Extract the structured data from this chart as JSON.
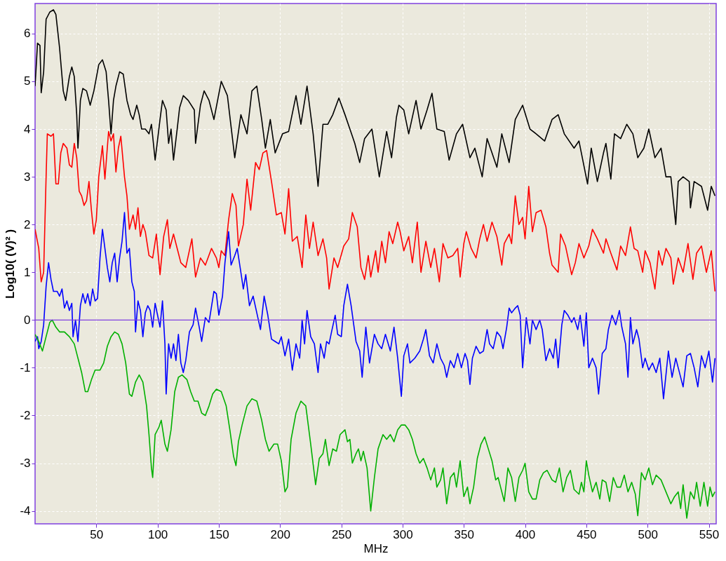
{
  "chart_data": {
    "type": "line",
    "xlabel": "MHz",
    "ylabel": "Log10( (V)² )",
    "xlim": [
      0,
      556
    ],
    "ylim": [
      -4.27,
      6.63
    ],
    "xticks": [
      50,
      100,
      150,
      200,
      250,
      300,
      350,
      400,
      450,
      500,
      550
    ],
    "yticks": [
      -4,
      -3,
      -2,
      -1,
      0,
      1,
      2,
      3,
      4,
      5,
      6
    ],
    "grid": true,
    "line_style": "solid",
    "marker": "none",
    "ref_lines": [
      {
        "axis": "y",
        "value": 0,
        "color": "#8040e0"
      }
    ],
    "series": [
      {
        "color": "#000000",
        "x": [
          0,
          2,
          4,
          5,
          7,
          9,
          12,
          15,
          17,
          20,
          23,
          25,
          28,
          30,
          32,
          34,
          35,
          37,
          39,
          42,
          45,
          48,
          52,
          55,
          58,
          60,
          62,
          64,
          66,
          69,
          72,
          75,
          78,
          80,
          83,
          85,
          87,
          90,
          93,
          95,
          98,
          102,
          104,
          107,
          109,
          111,
          113,
          116,
          118,
          121,
          125,
          130,
          131,
          135,
          138,
          142,
          146,
          152,
          157,
          163,
          168,
          173,
          177,
          181,
          185,
          188,
          192,
          196,
          202,
          207,
          213,
          217,
          222,
          227,
          231,
          235,
          239,
          243,
          248,
          253,
          257,
          261,
          265,
          269,
          275,
          281,
          287,
          291,
          295,
          297,
          301,
          305,
          311,
          315,
          320,
          324,
          328,
          334,
          338,
          344,
          349,
          355,
          359,
          365,
          369,
          373,
          377,
          381,
          387,
          392,
          398,
          404,
          409,
          416,
          422,
          427,
          432,
          440,
          444,
          451,
          454,
          459,
          464,
          466,
          470,
          473,
          478,
          483,
          488,
          492,
          497,
          501,
          506,
          511,
          515,
          519,
          523,
          525,
          529,
          534,
          535,
          538,
          544,
          549,
          552,
          555
        ],
        "values": [
          4.9,
          5.8,
          5.75,
          4.76,
          5.2,
          6.3,
          6.45,
          6.5,
          6.4,
          5.7,
          4.8,
          4.6,
          5.1,
          5.3,
          5.1,
          4.3,
          3.6,
          4.6,
          4.85,
          4.8,
          4.5,
          4.8,
          5.35,
          5.45,
          5.2,
          4.6,
          3.9,
          4.6,
          4.9,
          5.2,
          5.15,
          4.6,
          4.3,
          4.2,
          4.5,
          4.3,
          4.0,
          4.0,
          3.9,
          4.1,
          3.35,
          4.2,
          4.6,
          4.4,
          3.7,
          4.0,
          3.35,
          4.0,
          4.45,
          4.7,
          4.6,
          4.4,
          3.7,
          4.5,
          4.8,
          4.6,
          4.2,
          5.0,
          4.7,
          3.4,
          4.3,
          3.9,
          4.8,
          4.9,
          4.2,
          3.6,
          4.2,
          3.5,
          3.9,
          3.95,
          4.7,
          4.1,
          4.9,
          3.9,
          2.8,
          4.1,
          4.1,
          4.3,
          4.65,
          4.3,
          4.0,
          3.7,
          3.3,
          3.8,
          4.0,
          3.0,
          3.95,
          3.4,
          4.25,
          4.5,
          4.4,
          3.9,
          4.6,
          4.0,
          4.4,
          4.75,
          4.0,
          3.95,
          3.35,
          3.9,
          4.1,
          3.4,
          3.6,
          3.0,
          3.8,
          3.5,
          3.2,
          3.9,
          3.3,
          4.2,
          4.5,
          4.0,
          3.9,
          3.75,
          4.2,
          4.3,
          3.9,
          3.6,
          3.75,
          2.85,
          3.6,
          2.9,
          3.5,
          3.7,
          2.95,
          3.9,
          3.8,
          4.1,
          3.9,
          3.4,
          3.6,
          4.0,
          3.4,
          3.6,
          3.0,
          3.0,
          2.0,
          2.9,
          3.0,
          2.9,
          2.35,
          2.9,
          2.8,
          2.3,
          2.8,
          2.6
        ]
      },
      {
        "color": "#ff0000",
        "x": [
          0,
          3,
          5,
          7,
          9,
          10,
          13,
          15,
          17,
          19,
          21,
          23,
          26,
          28,
          30,
          32,
          34,
          36,
          38,
          40,
          42,
          44,
          46,
          48,
          50,
          52,
          55,
          57,
          60,
          62,
          64,
          66,
          68,
          70,
          73,
          75,
          77,
          80,
          82,
          84,
          86,
          88,
          90,
          93,
          96,
          99,
          102,
          105,
          108,
          110,
          113,
          116,
          119,
          123,
          128,
          131,
          135,
          139,
          144,
          148,
          150,
          152,
          155,
          158,
          161,
          164,
          166,
          170,
          173,
          176,
          180,
          183,
          186,
          189,
          193,
          197,
          201,
          204,
          207,
          210,
          214,
          218,
          221,
          224,
          227,
          231,
          235,
          238,
          240,
          244,
          247,
          252,
          256,
          259,
          263,
          266,
          269,
          272,
          274,
          278,
          280,
          283,
          286,
          289,
          292,
          296,
          298,
          301,
          305,
          308,
          312,
          315,
          319,
          323,
          326,
          330,
          333,
          337,
          341,
          345,
          347,
          350,
          352,
          356,
          360,
          363,
          366,
          369,
          373,
          377,
          381,
          383,
          387,
          389,
          392,
          395,
          398,
          400,
          403,
          406,
          409,
          413,
          417,
          420,
          422,
          427,
          429,
          433,
          438,
          441,
          444,
          448,
          452,
          455,
          459,
          464,
          466,
          470,
          475,
          478,
          482,
          486,
          489,
          492,
          496,
          498,
          502,
          506,
          509,
          512,
          515,
          519,
          521,
          525,
          529,
          533,
          537,
          540,
          544,
          548,
          552,
          555
        ],
        "values": [
          1.9,
          1.5,
          0.8,
          1.0,
          3.0,
          3.9,
          3.85,
          3.9,
          2.85,
          2.85,
          3.5,
          3.7,
          3.6,
          3.25,
          3.2,
          3.7,
          3.4,
          2.7,
          2.6,
          2.4,
          2.5,
          2.9,
          2.3,
          1.8,
          2.1,
          3.0,
          3.65,
          2.95,
          3.95,
          3.75,
          3.9,
          3.1,
          3.6,
          3.85,
          3.0,
          2.6,
          1.9,
          2.2,
          1.9,
          2.35,
          1.75,
          2.0,
          1.85,
          1.35,
          1.3,
          1.8,
          0.95,
          1.75,
          2.1,
          1.5,
          1.8,
          1.5,
          1.2,
          1.1,
          1.7,
          0.9,
          1.3,
          1.15,
          1.5,
          1.3,
          1.1,
          1.45,
          1.35,
          2.1,
          2.65,
          2.4,
          1.55,
          2.0,
          2.95,
          2.3,
          3.3,
          3.15,
          3.5,
          3.55,
          2.9,
          2.2,
          2.25,
          1.8,
          2.75,
          1.65,
          1.75,
          1.1,
          2.2,
          1.5,
          2.05,
          1.35,
          1.7,
          1.3,
          0.65,
          1.3,
          1.1,
          1.55,
          1.7,
          2.25,
          1.95,
          1.1,
          0.85,
          1.35,
          0.9,
          1.45,
          1.0,
          1.65,
          1.2,
          1.85,
          1.6,
          2.05,
          1.85,
          1.45,
          1.75,
          1.2,
          2.05,
          1.0,
          1.65,
          1.1,
          1.5,
          0.8,
          1.6,
          1.3,
          1.35,
          1.5,
          0.9,
          1.6,
          1.85,
          1.5,
          1.3,
          1.7,
          2.0,
          1.65,
          2.05,
          1.75,
          1.15,
          1.6,
          1.8,
          1.6,
          2.6,
          2.0,
          2.15,
          1.7,
          2.8,
          1.85,
          2.25,
          2.3,
          1.95,
          1.4,
          1.15,
          1.0,
          1.8,
          1.55,
          0.95,
          1.2,
          1.6,
          1.3,
          1.55,
          1.9,
          1.7,
          1.4,
          1.7,
          1.4,
          1.05,
          1.55,
          1.35,
          1.95,
          1.5,
          1.45,
          1.0,
          1.45,
          1.2,
          0.65,
          1.45,
          1.15,
          1.5,
          1.3,
          0.75,
          1.3,
          1.0,
          1.6,
          0.85,
          1.4,
          1.55,
          1.0,
          1.45,
          0.6
        ]
      },
      {
        "color": "#0000ff",
        "x": [
          0,
          2,
          3,
          5,
          7,
          9,
          11,
          13,
          15,
          18,
          20,
          22,
          24,
          26,
          28,
          30,
          31,
          33,
          35,
          37,
          39,
          41,
          43,
          45,
          47,
          49,
          51,
          53,
          55,
          57,
          59,
          61,
          63,
          65,
          67,
          69,
          71,
          73,
          75,
          77,
          79,
          81,
          82,
          84,
          86,
          88,
          90,
          92,
          94,
          96,
          98,
          100,
          102,
          104,
          106,
          107,
          109,
          111,
          113,
          115,
          117,
          119,
          121,
          123,
          126,
          129,
          131,
          134,
          136,
          139,
          142,
          146,
          148,
          150,
          153,
          155,
          158,
          160,
          163,
          165,
          168,
          170,
          172,
          175,
          178,
          181,
          184,
          187,
          190,
          193,
          196,
          199,
          201,
          204,
          207,
          210,
          213,
          216,
          218,
          220,
          222,
          225,
          228,
          231,
          233,
          236,
          238,
          240,
          242,
          245,
          247,
          250,
          252,
          255,
          258,
          262,
          265,
          267,
          270,
          273,
          277,
          280,
          283,
          286,
          290,
          293,
          296,
          299,
          301,
          304,
          306,
          310,
          314,
          317,
          319,
          322,
          325,
          328,
          331,
          334,
          336,
          339,
          342,
          345,
          348,
          351,
          353,
          355,
          357,
          360,
          363,
          366,
          369,
          371,
          374,
          377,
          380,
          382,
          385,
          387,
          389,
          392,
          394,
          396,
          398,
          401,
          404,
          406,
          409,
          412,
          414,
          417,
          420,
          423,
          425,
          427,
          430,
          432,
          435,
          438,
          440,
          443,
          445,
          448,
          450,
          452,
          455,
          458,
          460,
          463,
          466,
          468,
          471,
          474,
          477,
          479,
          482,
          484,
          486,
          488,
          491,
          493,
          496,
          498,
          501,
          504,
          507,
          510,
          513,
          517,
          520,
          523,
          525,
          529,
          532,
          535,
          538,
          541,
          544,
          547,
          550,
          553,
          555
        ],
        "values": [
          -0.45,
          -0.35,
          -0.6,
          -0.45,
          -0.1,
          0.7,
          1.2,
          0.85,
          0.6,
          0.6,
          0.5,
          0.65,
          0.25,
          0.4,
          0.2,
          0.35,
          -0.35,
          0.0,
          -0.45,
          0.3,
          0.55,
          0.35,
          0.55,
          0.3,
          0.65,
          0.4,
          0.45,
          1.3,
          1.9,
          1.5,
          1.1,
          0.8,
          1.2,
          1.4,
          0.8,
          1.3,
          1.65,
          2.25,
          1.4,
          1.5,
          0.8,
          0.6,
          -0.25,
          0.4,
          0.2,
          -0.35,
          0.15,
          0.3,
          0.2,
          -0.15,
          0.35,
          0.1,
          -0.15,
          0.4,
          -0.5,
          -1.55,
          -0.5,
          -0.8,
          -0.5,
          -0.85,
          -0.3,
          -0.9,
          -1.1,
          -0.85,
          -0.25,
          -0.1,
          0.25,
          -0.15,
          -0.45,
          0.05,
          -0.05,
          0.6,
          0.55,
          0.1,
          0.5,
          1.2,
          1.85,
          1.15,
          1.35,
          1.5,
          1.0,
          0.65,
          0.95,
          0.3,
          0.5,
          0.15,
          -0.2,
          0.5,
          0.1,
          -0.4,
          -0.45,
          -0.5,
          -0.35,
          -0.75,
          -0.4,
          -1.05,
          -0.5,
          -0.8,
          0.0,
          -0.5,
          0.2,
          -0.35,
          -0.5,
          -1.1,
          -0.5,
          -0.8,
          -0.45,
          -0.5,
          -0.25,
          0.1,
          -0.3,
          -0.35,
          0.3,
          0.75,
          0.3,
          -0.45,
          -0.65,
          -1.2,
          -0.15,
          -0.9,
          -0.3,
          -0.5,
          -0.6,
          -0.3,
          -0.65,
          -0.15,
          -0.8,
          -1.6,
          -0.75,
          -0.5,
          -0.9,
          -0.8,
          -0.65,
          -0.4,
          -0.2,
          -0.75,
          -0.9,
          -0.5,
          -0.8,
          -0.95,
          -1.2,
          -0.85,
          -1.0,
          -0.7,
          -1.0,
          -0.7,
          -0.85,
          -1.35,
          -0.8,
          -0.55,
          -0.7,
          -0.65,
          -0.2,
          -0.5,
          -0.6,
          -0.25,
          -0.35,
          -0.6,
          -0.15,
          0.25,
          0.15,
          0.25,
          0.3,
          0.1,
          -1.0,
          0.05,
          -0.5,
          0.0,
          -0.2,
          0.0,
          -0.2,
          -0.85,
          -0.6,
          -0.8,
          -0.4,
          -1.0,
          -0.1,
          0.2,
          0.1,
          -0.05,
          0.05,
          -0.2,
          0.1,
          -0.55,
          0.15,
          -1.0,
          -0.8,
          -1.0,
          -1.55,
          -0.7,
          -0.6,
          -0.2,
          0.1,
          -0.1,
          0.2,
          -0.15,
          -0.5,
          -1.2,
          0.05,
          -0.5,
          -0.2,
          -0.4,
          -1.0,
          -0.8,
          -1.05,
          -0.9,
          -1.1,
          -0.8,
          -1.65,
          -0.65,
          -1.2,
          -0.8,
          -1.0,
          -1.4,
          -0.75,
          -0.7,
          -1.0,
          -1.4,
          -0.75,
          -1.0,
          -0.65,
          -1.3,
          -0.8
        ]
      },
      {
        "color": "#00b000",
        "x": [
          0,
          3,
          6,
          9,
          12,
          14,
          17,
          20,
          24,
          28,
          32,
          35,
          38,
          41,
          43,
          46,
          49,
          53,
          56,
          59,
          62,
          65,
          68,
          71,
          74,
          77,
          79,
          82,
          85,
          88,
          91,
          93,
          95,
          96,
          98,
          101,
          103,
          106,
          108,
          111,
          114,
          117,
          120,
          124,
          127,
          130,
          133,
          136,
          139,
          142,
          145,
          148,
          152,
          156,
          159,
          162,
          164,
          166,
          169,
          173,
          177,
          181,
          185,
          188,
          191,
          195,
          198,
          201,
          204,
          206,
          209,
          213,
          217,
          221,
          225,
          229,
          232,
          235,
          237,
          240,
          243,
          246,
          249,
          253,
          255,
          257,
          259,
          262,
          264,
          266,
          268,
          271,
          274,
          277,
          280,
          284,
          287,
          290,
          293,
          296,
          299,
          302,
          305,
          308,
          311,
          314,
          317,
          320,
          323,
          326,
          328,
          331,
          333,
          336,
          339,
          342,
          344,
          347,
          350,
          353,
          355,
          358,
          361,
          364,
          367,
          370,
          373,
          376,
          378,
          380,
          383,
          386,
          389,
          392,
          395,
          398,
          400,
          403,
          406,
          409,
          412,
          415,
          418,
          422,
          425,
          428,
          431,
          434,
          437,
          440,
          444,
          446,
          448,
          450,
          452,
          455,
          458,
          461,
          463,
          466,
          469,
          472,
          475,
          478,
          481,
          484,
          487,
          490,
          492,
          495,
          498,
          501,
          504,
          507,
          511,
          515,
          519,
          522,
          525,
          527,
          529,
          532,
          535,
          538,
          540,
          543,
          546,
          549,
          551,
          553,
          555
        ],
        "values": [
          -0.3,
          -0.45,
          -0.65,
          -0.35,
          -0.05,
          0.0,
          -0.15,
          -0.25,
          -0.25,
          -0.35,
          -0.5,
          -0.8,
          -1.1,
          -1.5,
          -1.5,
          -1.25,
          -1.05,
          -1.05,
          -0.9,
          -0.55,
          -0.35,
          -0.25,
          -0.3,
          -0.5,
          -0.9,
          -1.55,
          -1.6,
          -1.3,
          -1.15,
          -1.3,
          -1.8,
          -2.4,
          -3.1,
          -3.3,
          -2.4,
          -2.25,
          -2.1,
          -2.6,
          -2.75,
          -2.3,
          -1.5,
          -1.2,
          -1.15,
          -1.25,
          -1.5,
          -1.7,
          -1.7,
          -1.95,
          -2.0,
          -1.8,
          -1.55,
          -1.45,
          -1.5,
          -1.8,
          -2.3,
          -2.85,
          -3.05,
          -2.55,
          -2.2,
          -1.8,
          -1.65,
          -1.7,
          -2.1,
          -2.5,
          -2.75,
          -2.6,
          -2.6,
          -2.95,
          -3.6,
          -3.5,
          -2.5,
          -1.95,
          -1.7,
          -1.8,
          -2.6,
          -3.45,
          -2.9,
          -2.8,
          -2.5,
          -3.05,
          -2.7,
          -2.75,
          -2.4,
          -2.3,
          -2.55,
          -2.5,
          -3.0,
          -2.8,
          -2.7,
          -2.95,
          -2.75,
          -3.1,
          -4.0,
          -3.3,
          -2.7,
          -2.4,
          -2.5,
          -2.4,
          -2.55,
          -2.3,
          -2.2,
          -2.2,
          -2.3,
          -2.5,
          -2.8,
          -3.0,
          -2.9,
          -3.1,
          -3.35,
          -3.1,
          -3.5,
          -3.35,
          -3.1,
          -3.85,
          -3.3,
          -3.2,
          -3.5,
          -2.95,
          -3.7,
          -3.5,
          -3.85,
          -3.5,
          -2.9,
          -2.6,
          -2.45,
          -2.7,
          -2.95,
          -3.35,
          -3.3,
          -3.5,
          -3.8,
          -3.1,
          -3.3,
          -3.8,
          -3.3,
          -3.15,
          -3.0,
          -3.6,
          -3.75,
          -3.75,
          -3.35,
          -3.2,
          -3.15,
          -3.35,
          -3.4,
          -3.1,
          -3.6,
          -3.3,
          -3.15,
          -3.55,
          -3.65,
          -3.4,
          -3.6,
          -2.95,
          -3.25,
          -3.6,
          -3.4,
          -3.75,
          -3.35,
          -3.4,
          -3.8,
          -3.3,
          -3.5,
          -3.5,
          -3.25,
          -3.6,
          -3.4,
          -3.65,
          -4.1,
          -3.2,
          -3.35,
          -3.1,
          -3.45,
          -3.25,
          -3.35,
          -3.6,
          -3.85,
          -3.7,
          -3.6,
          -3.95,
          -3.45,
          -4.15,
          -3.6,
          -3.75,
          -3.4,
          -3.9,
          -3.4,
          -3.9,
          -3.5,
          -3.7,
          -3.6
        ]
      }
    ]
  }
}
